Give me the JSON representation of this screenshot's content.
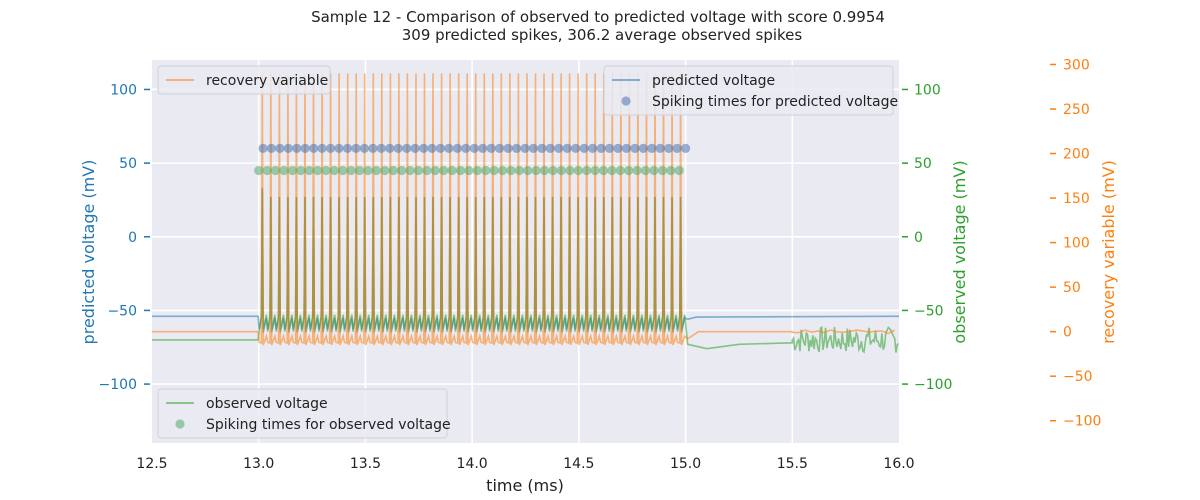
{
  "chart_data": {
    "type": "line",
    "title": "Sample 12 - Comparison of observed to predicted voltage with score 0.9954",
    "subtitle": "309 predicted spikes, 306.2 average observed spikes",
    "xlabel": "time (ms)",
    "xlim": [
      12.5,
      16.0
    ],
    "xticks": [
      "12.5",
      "13.0",
      "13.5",
      "14.0",
      "14.5",
      "15.0",
      "15.5",
      "16.0"
    ],
    "grid": true,
    "axes": {
      "left": {
        "label": "predicted voltage (mV)",
        "ylim": [
          -140,
          120
        ],
        "ticks": [
          "−100",
          "−50",
          "0",
          "50",
          "100"
        ],
        "tick_values": [
          -100,
          -50,
          0,
          50,
          100
        ],
        "color": "#1f77b4"
      },
      "right1": {
        "label": "observed voltage (mV)",
        "ylim": [
          -140,
          120
        ],
        "ticks": [
          "−100",
          "−50",
          "0",
          "50",
          "100"
        ],
        "tick_values": [
          -100,
          -50,
          0,
          50,
          100
        ],
        "color": "#2ca02c"
      },
      "right2": {
        "label": "recovery variable (mV)",
        "ylim": [
          -125,
          305
        ],
        "ticks": [
          "−100",
          "−50",
          "0",
          "50",
          "100",
          "150",
          "200",
          "250",
          "300"
        ],
        "tick_values": [
          -100,
          -50,
          0,
          50,
          100,
          150,
          200,
          250,
          300
        ],
        "color": "#ff7f0e"
      }
    },
    "series": [
      {
        "name": "predicted voltage",
        "axis": "left",
        "color": "#1f77b4",
        "baseline": -54,
        "stim_start": 13.0,
        "stim_end": 15.0,
        "spike_peak": 27,
        "trough": -65,
        "spike_count": 50
      },
      {
        "name": "observed voltage",
        "axis": "right1",
        "color": "#2ca02c",
        "baseline": -70,
        "stim_start": 13.0,
        "stim_end": 15.0,
        "spike_peak": 27,
        "trough": -63,
        "spike_count": 50,
        "noise_start": 15.5
      },
      {
        "name": "recovery variable",
        "axis": "right2",
        "color": "#ff7f0e",
        "baseline": 0,
        "stim_start": 13.0,
        "stim_end": 15.0,
        "spike_peak": 290,
        "trough": -15,
        "spike_count": 50
      }
    ],
    "spike_markers": [
      {
        "name": "Spiking times for predicted voltage",
        "y": 60,
        "axis": "left",
        "color": "#4c72b0",
        "t_start": 13.02,
        "t_end": 15.0,
        "count": 51
      },
      {
        "name": "Spiking times for observed voltage",
        "y": 45,
        "axis": "right1",
        "color": "#55a868",
        "t_start": 13.0,
        "t_end": 14.97,
        "count": 51
      }
    ],
    "legends": [
      {
        "position": "top-left",
        "entries": [
          {
            "label": "recovery variable",
            "kind": "line",
            "color": "#ff7f0e"
          }
        ]
      },
      {
        "position": "top-right",
        "entries": [
          {
            "label": "predicted voltage",
            "kind": "line",
            "color": "#1f77b4"
          },
          {
            "label": "Spiking times for predicted voltage",
            "kind": "marker",
            "color": "#4c72b0"
          }
        ]
      },
      {
        "position": "bottom-left",
        "entries": [
          {
            "label": "observed voltage",
            "kind": "line",
            "color": "#2ca02c"
          },
          {
            "label": "Spiking times for observed voltage",
            "kind": "marker",
            "color": "#55a868"
          }
        ]
      }
    ]
  }
}
